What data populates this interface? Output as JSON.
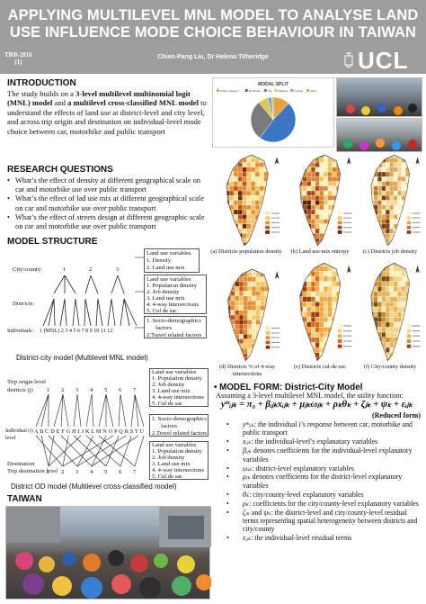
{
  "header": {
    "title_line1": "APPLYING MULTILEVEL MNL MODEL TO ANALYSE LAND",
    "title_line2": "USE INFLUENCE MODE CHOICE BEHAVIOUR IN TAIWAN",
    "trb_line1": "TRB-2016",
    "trb_line2": "(1)",
    "authors": "Chien-Pang Liu, Dr Helena Titheridge",
    "logo": "UCL"
  },
  "introduction": {
    "heading": "INTRODUCTION",
    "text_a": "The study builds on a ",
    "text_b": "3-level multilevel multinomial logit (MNL) model",
    "text_c": " and ",
    "text_d": "a multilevel cross-classified MNL model",
    "text_e": " to understand the effects of land use at district-level and city level, and across trip origin and destination on individual-level mode choice between car, motorbike and public transport"
  },
  "research_questions": {
    "heading": "RESEARCH QUESTIONS",
    "items": [
      "What’s the effect of density at different geographical scale on car and motorbike use over public transport",
      "What’s the effect of lad use mix at different geographical scale on car and motorbike use over public transport",
      "What’s the effect of streets design at different geographic scale on car and motorbike use over public transport"
    ]
  },
  "model_structure": {
    "heading": "MODEL STRUCTURE",
    "city_label": "City/county:",
    "districts_label": "Districts:",
    "individuals_label": "Individuals:",
    "city_nums": [
      "1",
      "2",
      "3"
    ],
    "individual_nums": "1 (MNL) 2  3  4  5  6  7  8  9  10  11  12",
    "land_use_1": [
      "Land use variables",
      "1. Density",
      "2. Land use mix"
    ],
    "land_use_2": [
      "Land use variables",
      "1. Population density",
      "2. Job density",
      "3. Land use mix",
      "4. 4-way intersections",
      "5. Cul de sac"
    ],
    "socio_1": [
      "1. Socio-demographics",
      "factors",
      "2.Travel related factors"
    ],
    "caption_1": "District-city model (Multilevel MNL model)",
    "origin_label": "Trip origin level",
    "districts_j": "districts (j)",
    "individual_label": "Individual (i)",
    "individual_level": "level",
    "letters": "A B C D E F G H I J  K L M N O P Q R S T U",
    "destination_label": "Trip destination level",
    "land_use_3": [
      "Land use variables",
      "1. Population density",
      "2. Job density",
      "3. Land use mix",
      "4. 4-way intersections",
      "5. Cul de sac"
    ],
    "socio_2": [
      "1. Socio-demographics",
      "factors",
      "2.Travel related factors"
    ],
    "land_use_4": [
      "Land use variables",
      "1. Population density",
      "2. Job density",
      "3. Land use mix",
      "4. 4-way intersections",
      "5. Cul de sac"
    ],
    "origin_nums": [
      "1",
      "2",
      "3",
      "4",
      "5",
      "6",
      "7"
    ],
    "dest_nums": [
      "1",
      "2",
      "3",
      "4",
      "5",
      "6",
      "7"
    ],
    "caption_2": "District OD model (Multilevel cross-classified model)"
  },
  "taiwan": {
    "heading": "TAIWAN"
  },
  "chart_data": {
    "type": "pie",
    "title": "MODAL SPLIT",
    "categories": [
      "Public transport",
      "Motorbike",
      "Car",
      "Walking",
      "Cycling",
      "Other"
    ],
    "values": [
      12,
      48,
      29,
      7,
      3,
      1
    ],
    "colors": [
      "#e8a33d",
      "#3b76c4",
      "#7a7a7a",
      "#e0c64a",
      "#6fa8dc",
      "#9cbf5a"
    ],
    "legend_position": "top"
  },
  "maps": [
    {
      "caption": "(a) Districts population density"
    },
    {
      "caption": "(b) Land use mix entropy"
    },
    {
      "caption": "(c) Districts job density"
    },
    {
      "caption": "(d) Districts % of 4-way intersections"
    },
    {
      "caption": "(e) Districts cul-de-sac"
    },
    {
      "caption": "(f) City/county density"
    }
  ],
  "model_form": {
    "heading": "• MODEL FORM: District-City Model",
    "intro": "Assuming a 3-level multilevel MNL model, the utility function:",
    "equation": "yᵐᵢⱼₖ = π₀ + βᵢⱼₖxᵢⱼₖ + μⱼₖωⱼₖ + ρₖθₖ + ζⱼₖ + ψₖ + εᵢⱼₖ",
    "reduced": "(Reduced form)",
    "definitions": [
      {
        "sym": "yᵐᵢⱼₖ",
        "text": ": the individual i’s response between car, motorbike and public transport"
      },
      {
        "sym": "xᵢⱼₖ",
        "text": ": the individual-level’s explanatory variables"
      },
      {
        "sym": "βᵢⱼₖ",
        "text": " denotes coefficients for the individual-level explanatory variables"
      },
      {
        "sym": "ωⱼₖ",
        "text": ": district-level explanatory variables"
      },
      {
        "sym": "μⱼₖ",
        "text": " denotes coefficients for the district-level explanatory variables"
      },
      {
        "sym": "θₖ",
        "text": ": city/county-level explanatory variables"
      },
      {
        "sym": "ρₖ",
        "text": ": coefficients for the city/county-level explanatory variables"
      },
      {
        "sym": "ζⱼₖ",
        "text": " and ψₖ: the district-level and city/county-level residual terms representing spatial heterogeneity between districts and city/county"
      },
      {
        "sym": "εᵢⱼₖ",
        "text": ": the individual-level residual terms"
      }
    ]
  }
}
